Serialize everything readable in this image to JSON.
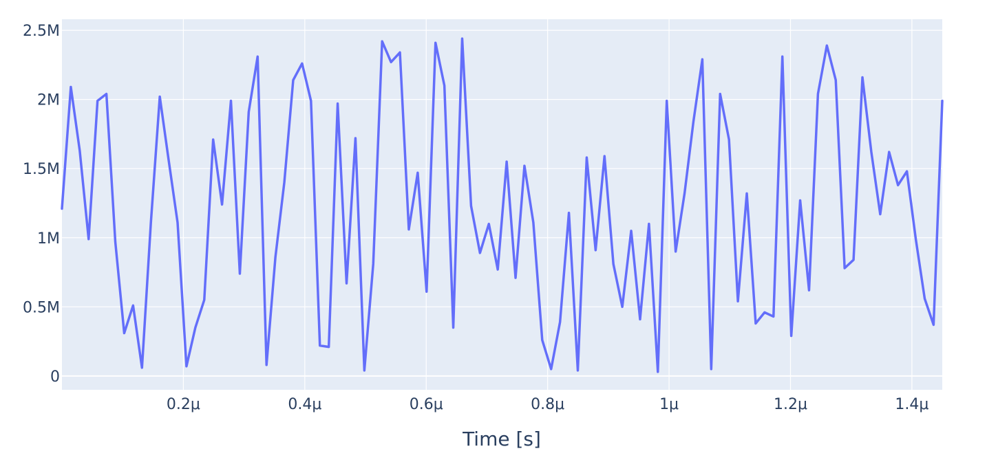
{
  "chart_data": {
    "type": "line",
    "title": "",
    "xlabel": "Time [s]",
    "ylabel": "",
    "xlim": [
      0,
      1.45e-06
    ],
    "ylim": [
      -100000,
      2580000
    ],
    "grid": true,
    "x_ticks": [
      {
        "value": 2e-07,
        "label": "0.2μ"
      },
      {
        "value": 4e-07,
        "label": "0.4μ"
      },
      {
        "value": 6e-07,
        "label": "0.6μ"
      },
      {
        "value": 8e-07,
        "label": "0.8μ"
      },
      {
        "value": 1e-06,
        "label": "1μ"
      },
      {
        "value": 1.2e-06,
        "label": "1.2μ"
      },
      {
        "value": 1.4e-06,
        "label": "1.4μ"
      }
    ],
    "y_ticks": [
      {
        "value": 0,
        "label": "0"
      },
      {
        "value": 500000,
        "label": "0.5M"
      },
      {
        "value": 1000000,
        "label": "1M"
      },
      {
        "value": 1500000,
        "label": "1.5M"
      },
      {
        "value": 2000000,
        "label": "2M"
      },
      {
        "value": 2500000,
        "label": "2.5M"
      }
    ],
    "colors": {
      "plot_bg": "#e5ecf6",
      "grid": "#ffffff",
      "line": "#636efa",
      "text": "#2a3f5f"
    },
    "series": [
      {
        "x_step": 1.465e-08,
        "values": [
          1210000,
          2090000,
          1630000,
          990000,
          1990000,
          2040000,
          970000,
          310000,
          510000,
          60000,
          1110000,
          2020000,
          1560000,
          1110000,
          70000,
          350000,
          550000,
          1710000,
          1240000,
          1990000,
          740000,
          1910000,
          2310000,
          80000,
          860000,
          1400000,
          2140000,
          2260000,
          1990000,
          220000,
          210000,
          1970000,
          670000,
          1720000,
          40000,
          810000,
          2420000,
          2270000,
          2340000,
          1060000,
          1470000,
          610000,
          2410000,
          2100000,
          350000,
          2440000,
          1230000,
          890000,
          1100000,
          770000,
          1550000,
          710000,
          1520000,
          1110000,
          260000,
          50000,
          390000,
          1180000,
          40000,
          1580000,
          910000,
          1590000,
          810000,
          500000,
          1050000,
          410000,
          1100000,
          30000,
          1990000,
          900000,
          1320000,
          1840000,
          2290000,
          50000,
          2040000,
          1710000,
          540000,
          1320000,
          380000,
          460000,
          430000,
          2310000,
          290000,
          1270000,
          620000,
          2040000,
          2390000,
          2140000,
          780000,
          840000,
          2160000,
          1620000,
          1170000,
          1620000,
          1380000,
          1480000,
          990000,
          560000,
          370000,
          1990000
        ]
      }
    ]
  }
}
